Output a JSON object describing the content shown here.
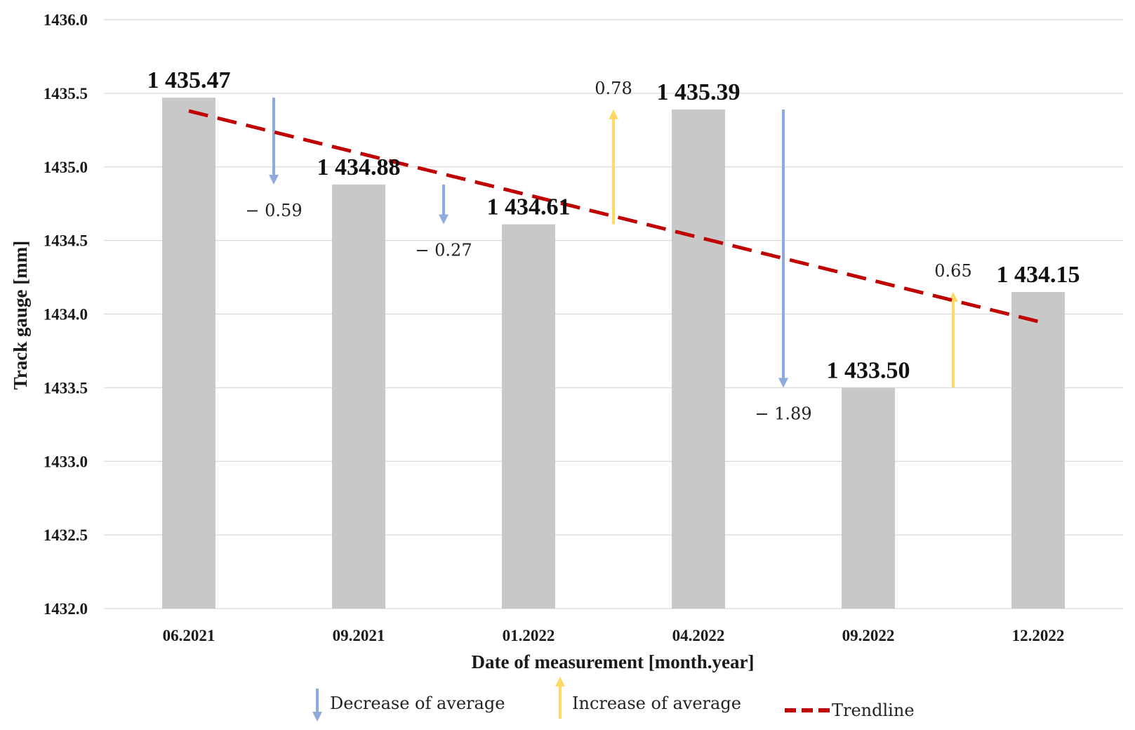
{
  "chart_data": {
    "type": "bar",
    "title": "",
    "xlabel": "Date of measurement [month.year]",
    "ylabel": "Track gauge [mm]",
    "ylim": [
      1432.0,
      1436.0
    ],
    "yticks": [
      "1432.0",
      "1432.5",
      "1433.0",
      "1433.5",
      "1434.0",
      "1434.5",
      "1435.0",
      "1435.5",
      "1436.0"
    ],
    "ytick_values": [
      1432.0,
      1432.5,
      1433.0,
      1433.5,
      1434.0,
      1434.5,
      1435.0,
      1435.5,
      1436.0
    ],
    "grid": true,
    "categories": [
      "06.2021",
      "09.2021",
      "01.2022",
      "04.2022",
      "09.2022",
      "12.2022"
    ],
    "values": [
      1435.47,
      1434.88,
      1434.61,
      1435.39,
      1433.5,
      1434.15
    ],
    "value_labels": [
      "1 435.47",
      "1 434.88",
      "1 434.61",
      "1 435.39",
      "1 433.50",
      "1 434.15"
    ],
    "changes": [
      {
        "from": 0,
        "to": 1,
        "value": -0.59,
        "label": "− 0.59",
        "direction": "decrease"
      },
      {
        "from": 1,
        "to": 2,
        "value": -0.27,
        "label": "− 0.27",
        "direction": "decrease"
      },
      {
        "from": 2,
        "to": 3,
        "value": 0.78,
        "label": "0.78",
        "direction": "increase"
      },
      {
        "from": 3,
        "to": 4,
        "value": -1.89,
        "label": "− 1.89",
        "direction": "decrease"
      },
      {
        "from": 4,
        "to": 5,
        "value": 0.65,
        "label": "0.65",
        "direction": "increase"
      }
    ],
    "trendline": {
      "start_value": 1435.38,
      "end_value": 1433.95
    },
    "legend": {
      "placement": "bottom",
      "items": [
        {
          "key": "decrease",
          "label": "Decrease of average"
        },
        {
          "key": "increase",
          "label": "Increase of average"
        },
        {
          "key": "trendline",
          "label": "Trendline"
        }
      ]
    },
    "colors": {
      "bar": "#c8c8c8",
      "decrease": "#8faadc",
      "increase": "#ffd966",
      "trendline": "#c00000",
      "grid": "#d9d9d9"
    }
  }
}
